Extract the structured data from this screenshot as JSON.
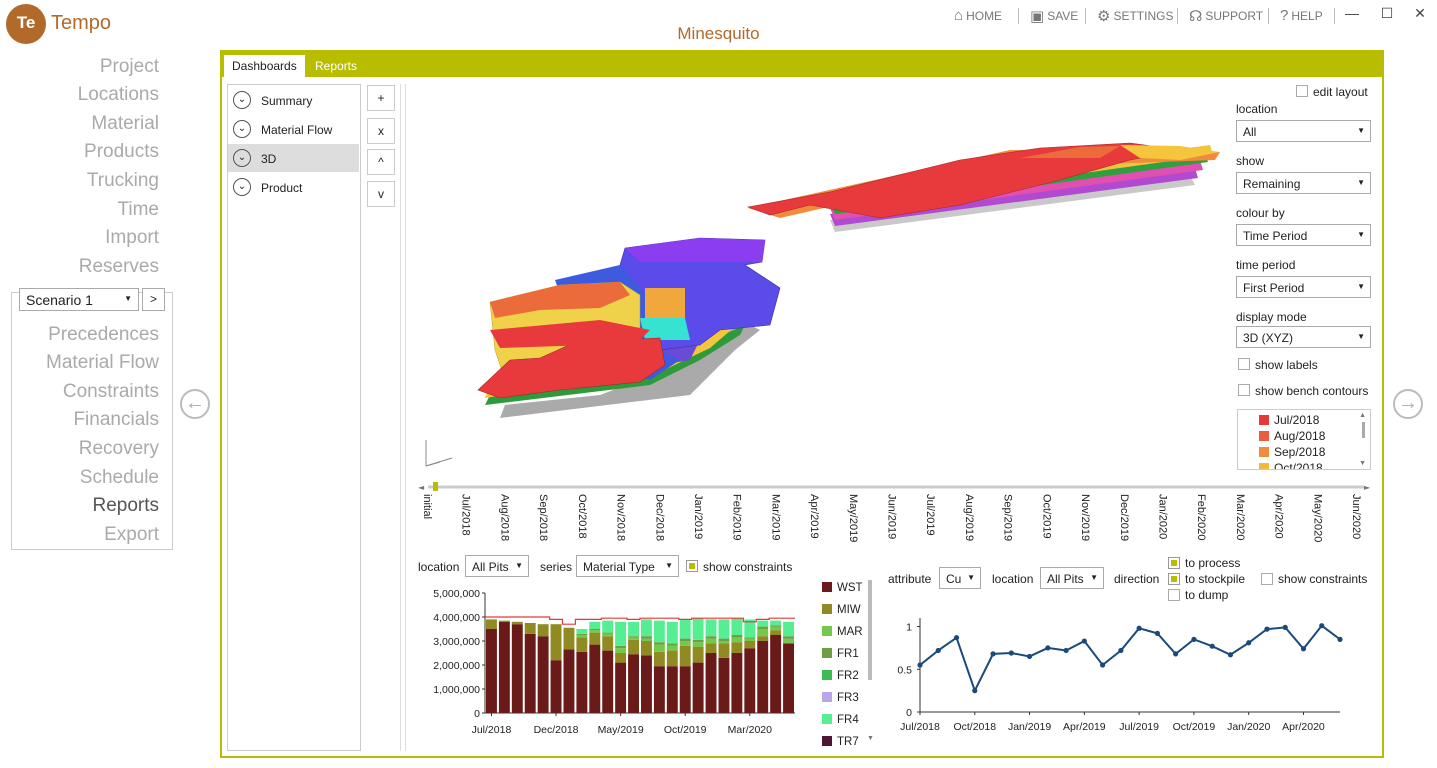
{
  "app": {
    "logo_text": "Te",
    "name": "Tempo",
    "project_title": "Minesquito"
  },
  "topnav": {
    "home": "HOME",
    "save": "SAVE",
    "settings": "SETTINGS",
    "support": "SUPPORT",
    "help": "HELP"
  },
  "window": {
    "minimize": "—",
    "maximize": "☐",
    "close": "✕"
  },
  "nav": {
    "items": [
      "Project",
      "Locations",
      "Material",
      "Products",
      "Trucking",
      "Time",
      "Import",
      "Reserves"
    ],
    "scenario_items": [
      "Precedences",
      "Material Flow",
      "Constraints",
      "Financials",
      "Recovery",
      "Schedule",
      "Reports",
      "Export"
    ],
    "active": "Reports"
  },
  "scenario": {
    "selected": "Scenario 1",
    "go": ">"
  },
  "tabs": {
    "dashboards": "Dashboards",
    "reports": "Reports"
  },
  "dashboards": {
    "items": [
      "Summary",
      "Material Flow",
      "3D",
      "Product"
    ],
    "selected": "3D",
    "controls": [
      "+",
      "x",
      "^",
      "v"
    ]
  },
  "view3d": {
    "edit_layout": "edit layout",
    "location_label": "location",
    "location_value": "All",
    "show_label": "show",
    "show_value": "Remaining",
    "colour_by_label": "colour by",
    "colour_by_value": "Time Period",
    "time_period_label": "time period",
    "time_period_value": "First Period",
    "display_mode_label": "display mode",
    "display_mode_value": "3D (XYZ)",
    "show_labels": "show labels",
    "show_bench_contours": "show bench contours",
    "legend": [
      {
        "label": "Jul/2018",
        "color": "#e8373a"
      },
      {
        "label": "Aug/2018",
        "color": "#ec5b3b"
      },
      {
        "label": "Sep/2018",
        "color": "#f28a3c"
      },
      {
        "label": "Oct/2018",
        "color": "#f5b83d"
      }
    ]
  },
  "timeline": {
    "labels": [
      "initial",
      "Jul/2018",
      "Aug/2018",
      "Sep/2018",
      "Oct/2018",
      "Nov/2018",
      "Dec/2018",
      "Jan/2019",
      "Feb/2019",
      "Mar/2019",
      "Apr/2019",
      "May/2019",
      "Jun/2019",
      "Jul/2019",
      "Aug/2019",
      "Sep/2019",
      "Oct/2019",
      "Nov/2019",
      "Dec/2019",
      "Jan/2020",
      "Feb/2020",
      "Mar/2020",
      "Apr/2020",
      "May/2020",
      "Jun/2020"
    ]
  },
  "bar_panel": {
    "location_label": "location",
    "location_value": "All Pits",
    "series_label": "series",
    "series_value": "Material Type",
    "show_constraints": "show constraints"
  },
  "line_panel": {
    "attribute_label": "attribute",
    "attribute_value": "Cu",
    "location_label": "location",
    "location_value": "All Pits",
    "direction_label": "direction",
    "to_process": "to process",
    "to_stockpile": "to stockpile",
    "to_dump": "to dump",
    "show_constraints": "show constraints"
  },
  "chart_data": [
    {
      "type": "bar",
      "stacked": true,
      "categories": [
        "Jul/2018",
        "Aug/2018",
        "Sep/2018",
        "Oct/2018",
        "Nov/2018",
        "Dec/2018",
        "Jan/2019",
        "Feb/2019",
        "Mar/2019",
        "Apr/2019",
        "May/2019",
        "Jun/2019",
        "Jul/2019",
        "Aug/2019",
        "Sep/2019",
        "Oct/2019",
        "Nov/2019",
        "Dec/2019",
        "Jan/2020",
        "Feb/2020",
        "Mar/2020",
        "Apr/2020",
        "May/2020",
        "Jun/2020"
      ],
      "xticks": [
        "Jul/2018",
        "Dec/2018",
        "May/2019",
        "Oct/2019",
        "Mar/2020"
      ],
      "yticks": [
        "0",
        "1,000,000",
        "2,000,000",
        "3,000,000",
        "4,000,000",
        "5,000,000"
      ],
      "ylim": [
        0,
        5000000
      ],
      "series": [
        {
          "name": "WST",
          "color": "#6b1a1a",
          "values": [
            3500000,
            3800000,
            3700000,
            3300000,
            3200000,
            2200000,
            2650000,
            2550000,
            2850000,
            2600000,
            2100000,
            2450000,
            2400000,
            1950000,
            1950000,
            1950000,
            2100000,
            2500000,
            2300000,
            2500000,
            2700000,
            3000000,
            3250000,
            2900000
          ]
        },
        {
          "name": "MIW",
          "color": "#8f8a22",
          "values": [
            400000,
            50000,
            100000,
            450000,
            500000,
            1500000,
            900000,
            600000,
            500000,
            600000,
            400000,
            600000,
            600000,
            600000,
            650000,
            850000,
            650000,
            400000,
            600000,
            450000,
            300000,
            200000,
            200000,
            0
          ]
        },
        {
          "name": "MAR",
          "color": "#73c94a",
          "values": [
            0,
            0,
            0,
            0,
            0,
            0,
            0,
            100000,
            100000,
            100000,
            200000,
            100000,
            100000,
            300000,
            200000,
            200000,
            200000,
            200000,
            100000,
            200000,
            100000,
            300000,
            150000,
            200000
          ]
        },
        {
          "name": "FR1",
          "color": "#6e9e45",
          "values": [
            0,
            0,
            0,
            0,
            0,
            0,
            0,
            50000,
            50000,
            50000,
            100000,
            50000,
            100000,
            100000,
            100000,
            100000,
            100000,
            100000,
            100000,
            100000,
            50000,
            100000,
            50000,
            100000
          ]
        },
        {
          "name": "FR2",
          "color": "#3dbb54",
          "values": [
            0,
            0,
            0,
            0,
            0,
            0,
            0,
            0,
            0,
            0,
            0,
            0,
            0,
            0,
            0,
            0,
            0,
            0,
            0,
            0,
            0,
            0,
            0,
            0
          ]
        },
        {
          "name": "FR3",
          "color": "#b9a6e6",
          "values": [
            0,
            0,
            0,
            0,
            0,
            0,
            0,
            0,
            0,
            0,
            0,
            0,
            0,
            0,
            0,
            0,
            0,
            0,
            0,
            0,
            0,
            0,
            0,
            0
          ]
        },
        {
          "name": "FR4",
          "color": "#55ee93",
          "values": [
            0,
            0,
            0,
            0,
            0,
            0,
            0,
            200000,
            300000,
            500000,
            1000000,
            600000,
            700000,
            900000,
            900000,
            800000,
            900000,
            700000,
            800000,
            700000,
            750000,
            250000,
            200000,
            600000
          ]
        },
        {
          "name": "TR7",
          "color": "#501535",
          "values": [
            0,
            0,
            0,
            0,
            0,
            0,
            0,
            0,
            0,
            0,
            0,
            0,
            0,
            0,
            0,
            0,
            0,
            0,
            0,
            0,
            0,
            0,
            0,
            0
          ]
        }
      ],
      "constraint": [
        4000000,
        4000000,
        4000000,
        4000000,
        4000000,
        3900000,
        3700000,
        3900000,
        3900000,
        3950000,
        3950000,
        3900000,
        3950000,
        3950000,
        3950000,
        3900000,
        3950000,
        3950000,
        3950000,
        3950000,
        3800000,
        3900000,
        3950000,
        3950000
      ],
      "legend": [
        "WST",
        "MIW",
        "MAR",
        "FR1",
        "FR2",
        "FR3",
        "FR4",
        "TR7"
      ]
    },
    {
      "type": "line",
      "x": [
        "Jul/2018",
        "Aug/2018",
        "Sep/2018",
        "Oct/2018",
        "Nov/2018",
        "Dec/2018",
        "Jan/2019",
        "Feb/2019",
        "Mar/2019",
        "Apr/2019",
        "May/2019",
        "Jun/2019",
        "Jul/2019",
        "Aug/2019",
        "Sep/2019",
        "Oct/2019",
        "Nov/2019",
        "Dec/2019",
        "Jan/2020",
        "Feb/2020",
        "Mar/2020",
        "Apr/2020",
        "May/2020",
        "Jun/2020"
      ],
      "y": [
        0.55,
        0.72,
        0.87,
        0.25,
        0.68,
        0.69,
        0.65,
        0.75,
        0.72,
        0.83,
        0.55,
        0.72,
        0.98,
        0.92,
        0.68,
        0.85,
        0.77,
        0.67,
        0.81,
        0.97,
        0.99,
        0.74,
        1.01,
        0.85
      ],
      "xticks": [
        "Jul/2018",
        "Oct/2018",
        "Jan/2019",
        "Apr/2019",
        "Jul/2019",
        "Oct/2019",
        "Jan/2020",
        "Apr/2020"
      ],
      "yticks": [
        "0",
        "0.5",
        "1"
      ],
      "ylim": [
        0,
        1.1
      ],
      "color": "#1b4a7a"
    }
  ]
}
